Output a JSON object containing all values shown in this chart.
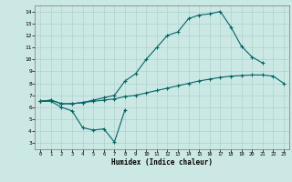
{
  "xlabel": "Humidex (Indice chaleur)",
  "bg_color": "#cce8e4",
  "grid_color": "#aad4cc",
  "line_color": "#006666",
  "xlim": [
    -0.5,
    23.5
  ],
  "ylim": [
    2.5,
    14.5
  ],
  "xticks": [
    0,
    1,
    2,
    3,
    4,
    5,
    6,
    7,
    8,
    9,
    10,
    11,
    12,
    13,
    14,
    15,
    16,
    17,
    18,
    19,
    20,
    21,
    22,
    23
  ],
  "yticks": [
    3,
    4,
    5,
    6,
    7,
    8,
    9,
    10,
    11,
    12,
    13,
    14
  ],
  "line1_y": [
    6.5,
    6.5,
    6.0,
    5.7,
    4.3,
    4.1,
    4.2,
    3.1,
    5.8,
    null,
    null,
    null,
    null,
    null,
    null,
    null,
    null,
    null,
    null,
    null,
    null,
    null,
    null,
    null
  ],
  "line2_y": [
    6.5,
    6.6,
    6.3,
    6.3,
    6.4,
    6.5,
    6.6,
    6.7,
    6.9,
    7.0,
    7.2,
    7.4,
    7.6,
    7.8,
    8.0,
    8.2,
    8.35,
    8.5,
    8.6,
    8.65,
    8.7,
    8.7,
    8.6,
    8.0
  ],
  "line3_y": [
    6.5,
    6.6,
    6.3,
    6.3,
    6.4,
    6.6,
    6.8,
    7.0,
    8.2,
    8.8,
    10.0,
    11.0,
    12.0,
    12.3,
    13.4,
    13.7,
    13.8,
    14.0,
    12.7,
    11.1,
    10.2,
    9.7,
    null,
    null
  ]
}
